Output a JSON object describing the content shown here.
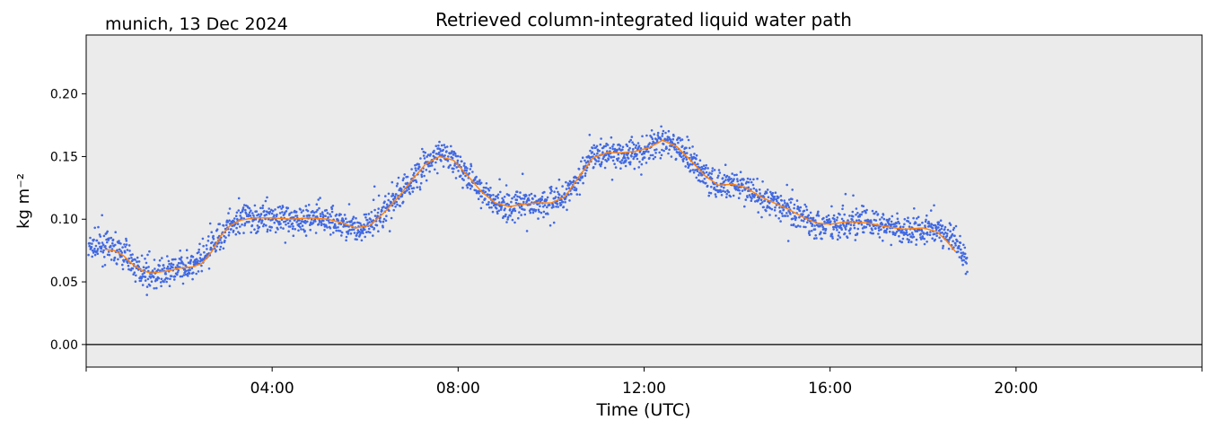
{
  "header": {
    "location_date": "munich, 13 Dec 2024",
    "title": "Retrieved column-integrated liquid water path"
  },
  "chart_data": {
    "type": "line",
    "title": "Retrieved column-integrated liquid water path",
    "subtitle": "munich, 13 Dec 2024",
    "xlabel": "Time (UTC)",
    "ylabel": "kg m⁻²",
    "xlim_hours": [
      0,
      24
    ],
    "ylim": [
      -0.018,
      0.247
    ],
    "x_ticks": [
      {
        "hour": 0,
        "label": ""
      },
      {
        "hour": 4,
        "label": "04:00"
      },
      {
        "hour": 8,
        "label": "08:00"
      },
      {
        "hour": 12,
        "label": "12:00"
      },
      {
        "hour": 16,
        "label": "16:00"
      },
      {
        "hour": 20,
        "label": "20:00"
      },
      {
        "hour": 24,
        "label": ""
      }
    ],
    "y_ticks": [
      {
        "value": 0.0,
        "label": "0.00"
      },
      {
        "value": 0.05,
        "label": "0.05"
      },
      {
        "value": 0.1,
        "label": "0.10"
      },
      {
        "value": 0.15,
        "label": "0.15"
      },
      {
        "value": 0.2,
        "label": "0.20"
      }
    ],
    "zero_line": true,
    "grid": false,
    "background": "#ebebeb",
    "series": [
      {
        "style": "scatter",
        "color": "#4169e1",
        "x_range_hours": [
          0.05,
          18.95
        ],
        "points": [
          [
            0.05,
            0.077
          ],
          [
            0.3,
            0.079
          ],
          [
            0.6,
            0.077
          ],
          [
            0.8,
            0.072
          ],
          [
            1.0,
            0.065
          ],
          [
            1.2,
            0.058
          ],
          [
            1.4,
            0.055
          ],
          [
            1.6,
            0.057
          ],
          [
            1.8,
            0.059
          ],
          [
            2.0,
            0.061
          ],
          [
            2.3,
            0.062
          ],
          [
            2.5,
            0.067
          ],
          [
            2.7,
            0.077
          ],
          [
            2.9,
            0.088
          ],
          [
            3.1,
            0.096
          ],
          [
            3.3,
            0.1
          ],
          [
            3.6,
            0.101
          ],
          [
            4.0,
            0.101
          ],
          [
            4.4,
            0.1
          ],
          [
            4.8,
            0.101
          ],
          [
            5.2,
            0.1
          ],
          [
            5.5,
            0.097
          ],
          [
            5.8,
            0.092
          ],
          [
            6.1,
            0.095
          ],
          [
            6.4,
            0.105
          ],
          [
            6.7,
            0.118
          ],
          [
            7.0,
            0.131
          ],
          [
            7.3,
            0.144
          ],
          [
            7.6,
            0.151
          ],
          [
            7.9,
            0.148
          ],
          [
            8.2,
            0.135
          ],
          [
            8.5,
            0.122
          ],
          [
            8.8,
            0.114
          ],
          [
            9.1,
            0.11
          ],
          [
            9.4,
            0.112
          ],
          [
            9.7,
            0.113
          ],
          [
            10.0,
            0.113
          ],
          [
            10.3,
            0.118
          ],
          [
            10.6,
            0.134
          ],
          [
            10.9,
            0.149
          ],
          [
            11.2,
            0.153
          ],
          [
            11.5,
            0.153
          ],
          [
            11.8,
            0.154
          ],
          [
            12.1,
            0.157
          ],
          [
            12.4,
            0.163
          ],
          [
            12.7,
            0.158
          ],
          [
            13.0,
            0.147
          ],
          [
            13.3,
            0.135
          ],
          [
            13.6,
            0.127
          ],
          [
            13.9,
            0.128
          ],
          [
            14.2,
            0.125
          ],
          [
            14.5,
            0.118
          ],
          [
            14.8,
            0.113
          ],
          [
            15.1,
            0.108
          ],
          [
            15.4,
            0.102
          ],
          [
            15.7,
            0.097
          ],
          [
            16.0,
            0.096
          ],
          [
            16.4,
            0.098
          ],
          [
            16.8,
            0.097
          ],
          [
            17.2,
            0.094
          ],
          [
            17.6,
            0.092
          ],
          [
            18.0,
            0.093
          ],
          [
            18.3,
            0.091
          ],
          [
            18.6,
            0.086
          ],
          [
            18.8,
            0.077
          ],
          [
            18.95,
            0.066
          ]
        ]
      },
      {
        "style": "line",
        "color": "#ff7f0e",
        "points": [
          [
            0.4,
            0.076
          ],
          [
            0.6,
            0.075
          ],
          [
            0.8,
            0.071
          ],
          [
            1.0,
            0.064
          ],
          [
            1.2,
            0.059
          ],
          [
            1.4,
            0.057
          ],
          [
            1.6,
            0.058
          ],
          [
            1.8,
            0.059
          ],
          [
            2.0,
            0.061
          ],
          [
            2.3,
            0.062
          ],
          [
            2.5,
            0.065
          ],
          [
            2.7,
            0.074
          ],
          [
            2.9,
            0.087
          ],
          [
            3.1,
            0.095
          ],
          [
            3.3,
            0.099
          ],
          [
            3.6,
            0.101
          ],
          [
            4.0,
            0.101
          ],
          [
            4.4,
            0.1
          ],
          [
            4.8,
            0.101
          ],
          [
            5.2,
            0.1
          ],
          [
            5.5,
            0.097
          ],
          [
            5.8,
            0.093
          ],
          [
            6.1,
            0.095
          ],
          [
            6.4,
            0.105
          ],
          [
            6.7,
            0.117
          ],
          [
            7.0,
            0.131
          ],
          [
            7.3,
            0.144
          ],
          [
            7.6,
            0.15
          ],
          [
            7.9,
            0.147
          ],
          [
            8.2,
            0.135
          ],
          [
            8.5,
            0.122
          ],
          [
            8.8,
            0.113
          ],
          [
            9.1,
            0.11
          ],
          [
            9.4,
            0.112
          ],
          [
            9.7,
            0.113
          ],
          [
            10.0,
            0.113
          ],
          [
            10.3,
            0.118
          ],
          [
            10.6,
            0.134
          ],
          [
            10.9,
            0.149
          ],
          [
            11.2,
            0.153
          ],
          [
            11.5,
            0.153
          ],
          [
            11.8,
            0.154
          ],
          [
            12.1,
            0.157
          ],
          [
            12.4,
            0.163
          ],
          [
            12.7,
            0.158
          ],
          [
            13.0,
            0.147
          ],
          [
            13.3,
            0.135
          ],
          [
            13.6,
            0.127
          ],
          [
            13.9,
            0.128
          ],
          [
            14.2,
            0.125
          ],
          [
            14.5,
            0.118
          ],
          [
            14.8,
            0.113
          ],
          [
            15.1,
            0.108
          ],
          [
            15.4,
            0.102
          ],
          [
            15.7,
            0.097
          ],
          [
            16.0,
            0.096
          ],
          [
            16.4,
            0.098
          ],
          [
            16.8,
            0.097
          ],
          [
            17.2,
            0.094
          ],
          [
            17.6,
            0.092
          ],
          [
            18.0,
            0.093
          ],
          [
            18.3,
            0.09
          ],
          [
            18.5,
            0.083
          ],
          [
            18.7,
            0.074
          ]
        ]
      }
    ]
  }
}
